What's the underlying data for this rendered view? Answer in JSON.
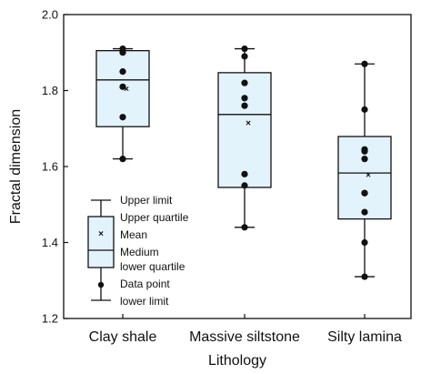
{
  "chart_data": {
    "type": "box",
    "xlabel": "Lithology",
    "ylabel": "Fractal dimension",
    "ylim": [
      1.2,
      2.0
    ],
    "yticks": [
      "1.2",
      "1.4",
      "1.6",
      "1.8",
      "2.0"
    ],
    "categories": [
      "Clay shale",
      "Massive siltstone",
      "Silty lamina"
    ],
    "box_fill": "#e3f3fc",
    "boxes": [
      {
        "category": "Clay shale",
        "lower_limit": 1.62,
        "lower_quartile": 1.705,
        "median": 1.828,
        "upper_quartile": 1.905,
        "upper_limit": 1.91,
        "mean": 1.805,
        "points": [
          1.91,
          1.9,
          1.85,
          1.81,
          1.73,
          1.62
        ]
      },
      {
        "category": "Massive siltstone",
        "lower_limit": 1.44,
        "lower_quartile": 1.545,
        "median": 1.737,
        "upper_quartile": 1.847,
        "upper_limit": 1.91,
        "mean": 1.715,
        "points": [
          1.91,
          1.89,
          1.82,
          1.78,
          1.76,
          1.58,
          1.55,
          1.44
        ]
      },
      {
        "category": "Silty lamina",
        "lower_limit": 1.31,
        "lower_quartile": 1.462,
        "median": 1.583,
        "upper_quartile": 1.679,
        "upper_limit": 1.87,
        "mean": 1.578,
        "points": [
          1.87,
          1.75,
          1.645,
          1.64,
          1.62,
          1.53,
          1.53,
          1.48,
          1.4,
          1.31
        ]
      }
    ],
    "legend": {
      "placement": "bottom-left",
      "items": [
        "Upper limit",
        "Upper quartile",
        "Mean",
        "Medium",
        "lower quartile",
        "Data point",
        "lower limit"
      ]
    }
  }
}
